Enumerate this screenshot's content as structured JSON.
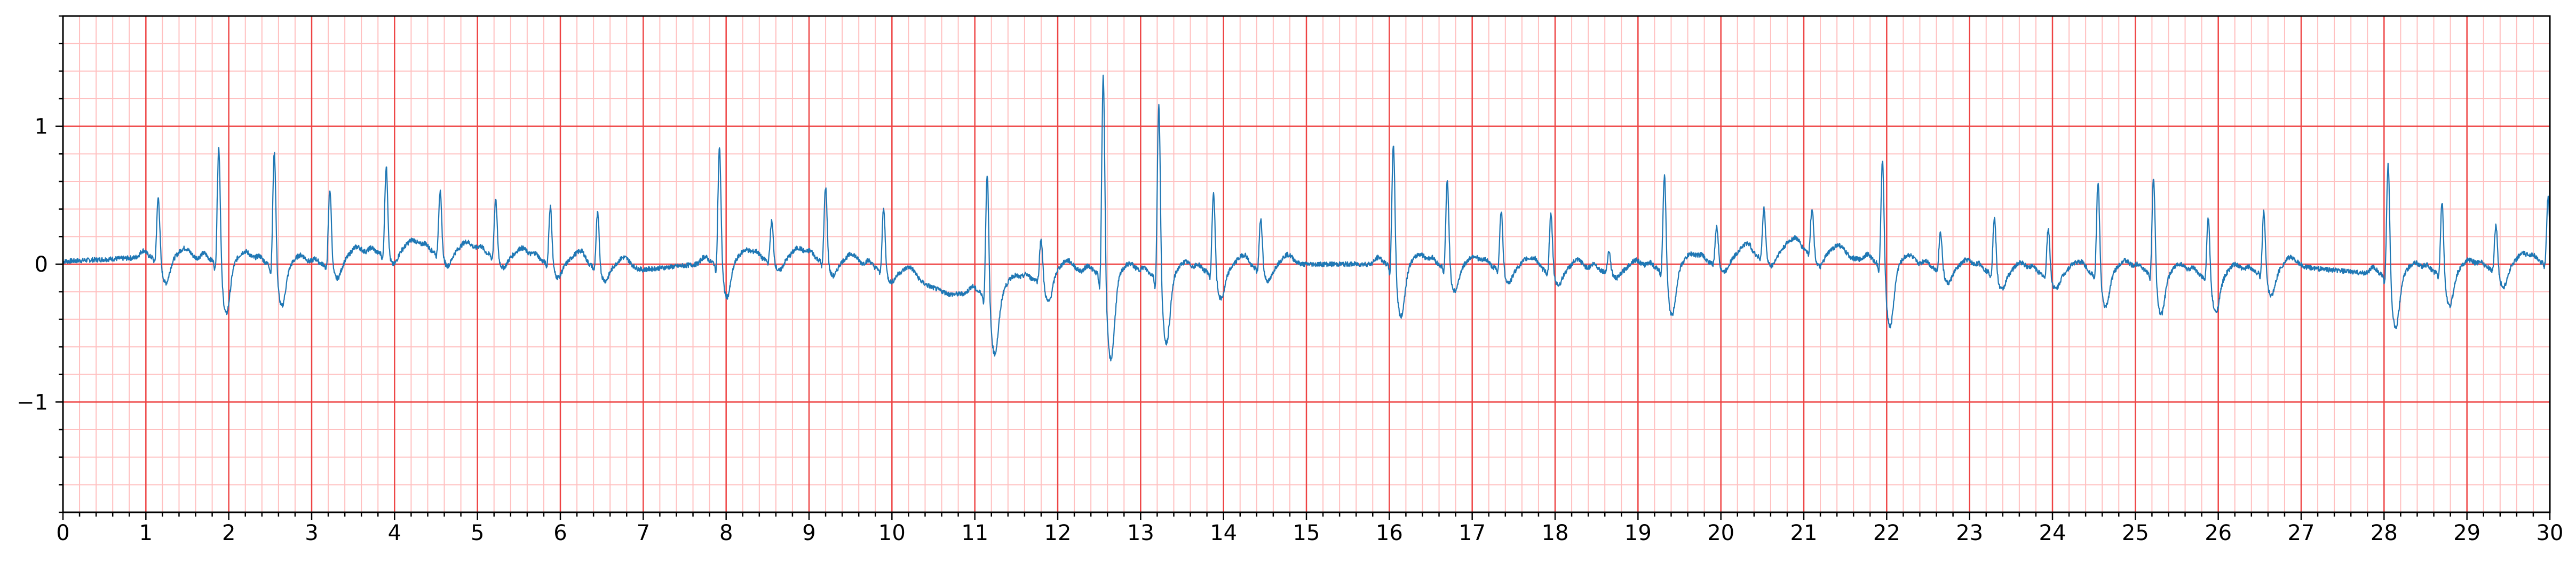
{
  "chart_data": {
    "type": "line",
    "title": "",
    "xlabel": "",
    "ylabel": "",
    "xlim": [
      0,
      30
    ],
    "ylim": [
      -1.8,
      1.8
    ],
    "x_ticks": [
      "0",
      "1",
      "2",
      "3",
      "4",
      "5",
      "6",
      "7",
      "8",
      "9",
      "10",
      "11",
      "12",
      "13",
      "14",
      "15",
      "16",
      "17",
      "18",
      "19",
      "20",
      "21",
      "22",
      "23",
      "24",
      "25",
      "26",
      "27",
      "28",
      "29",
      "30"
    ],
    "y_ticks": [
      "−1",
      "0",
      "1"
    ],
    "y_tick_values": [
      -1,
      0,
      1
    ],
    "grid": true,
    "grid_major": {
      "x_step": 1,
      "y_step": 1,
      "color": "#ee4444"
    },
    "grid_minor": {
      "x_step": 0.2,
      "y_step": 0.2,
      "color": "#ffc0c0"
    },
    "line_color": "#1f77b4",
    "series": [
      {
        "beats": [
          {
            "t": 1.15,
            "amp": 0.46,
            "neg": -0.18
          },
          {
            "t": 1.88,
            "amp": 0.87,
            "neg": -0.38
          },
          {
            "t": 2.55,
            "amp": 0.85,
            "neg": -0.3
          },
          {
            "t": 3.22,
            "amp": 0.55,
            "neg": -0.12
          },
          {
            "t": 3.9,
            "amp": 0.63,
            "neg": -0.1
          },
          {
            "t": 4.55,
            "amp": 0.45,
            "neg": -0.1
          },
          {
            "t": 5.22,
            "amp": 0.41,
            "neg": -0.08
          },
          {
            "t": 5.88,
            "amp": 0.42,
            "neg": -0.1
          },
          {
            "t": 6.45,
            "amp": 0.4,
            "neg": -0.1
          },
          {
            "t": 7.92,
            "amp": 0.86,
            "neg": -0.26
          },
          {
            "t": 8.55,
            "amp": 0.29,
            "neg": -0.08
          },
          {
            "t": 9.2,
            "amp": 0.55,
            "neg": -0.1
          },
          {
            "t": 9.9,
            "amp": 0.45,
            "neg": -0.08
          },
          {
            "t": 11.15,
            "amp": 0.92,
            "neg": -0.45
          },
          {
            "t": 11.8,
            "amp": 0.3,
            "neg": -0.2
          },
          {
            "t": 12.55,
            "amp": 1.51,
            "neg": -0.62
          },
          {
            "t": 13.22,
            "amp": 1.29,
            "neg": -0.5
          },
          {
            "t": 13.88,
            "amp": 0.6,
            "neg": -0.2
          },
          {
            "t": 14.45,
            "amp": 0.37,
            "neg": -0.1
          },
          {
            "t": 16.05,
            "amp": 0.92,
            "neg": -0.38
          },
          {
            "t": 16.7,
            "amp": 0.64,
            "neg": -0.18
          },
          {
            "t": 17.35,
            "amp": 0.43,
            "neg": -0.1
          },
          {
            "t": 17.95,
            "amp": 0.42,
            "neg": -0.1
          },
          {
            "t": 18.65,
            "amp": 0.15,
            "neg": -0.05
          },
          {
            "t": 19.32,
            "amp": 0.71,
            "neg": -0.35
          },
          {
            "t": 19.95,
            "amp": 0.27,
            "neg": -0.08
          },
          {
            "t": 20.52,
            "amp": 0.35,
            "neg": -0.08
          },
          {
            "t": 21.1,
            "amp": 0.33,
            "neg": -0.1
          },
          {
            "t": 21.95,
            "amp": 0.8,
            "neg": -0.45
          },
          {
            "t": 22.65,
            "amp": 0.28,
            "neg": -0.1
          },
          {
            "t": 23.3,
            "amp": 0.41,
            "neg": -0.12
          },
          {
            "t": 23.95,
            "amp": 0.35,
            "neg": -0.1
          },
          {
            "t": 24.55,
            "amp": 0.69,
            "neg": -0.25
          },
          {
            "t": 25.22,
            "amp": 0.73,
            "neg": -0.3
          },
          {
            "t": 25.88,
            "amp": 0.46,
            "neg": -0.25
          },
          {
            "t": 26.55,
            "amp": 0.46,
            "neg": -0.18
          },
          {
            "t": 28.05,
            "amp": 0.85,
            "neg": -0.38
          },
          {
            "t": 28.7,
            "amp": 0.54,
            "neg": -0.25
          },
          {
            "t": 29.35,
            "amp": 0.33,
            "neg": -0.15
          },
          {
            "t": 29.98,
            "amp": 0.48,
            "neg": -0.1
          }
        ],
        "baseline": [
          {
            "x": 0,
            "y": 0.02
          },
          {
            "x": 1,
            "y": 0.05
          },
          {
            "x": 2,
            "y": 0.02
          },
          {
            "x": 3,
            "y": -0.02
          },
          {
            "x": 4,
            "y": 0.1
          },
          {
            "x": 5,
            "y": 0.08
          },
          {
            "x": 6,
            "y": 0.0
          },
          {
            "x": 7,
            "y": -0.04
          },
          {
            "x": 8,
            "y": 0.02
          },
          {
            "x": 9,
            "y": 0.04
          },
          {
            "x": 10,
            "y": -0.05
          },
          {
            "x": 10.7,
            "y": -0.22
          },
          {
            "x": 11.3,
            "y": -0.2
          },
          {
            "x": 12,
            "y": -0.05
          },
          {
            "x": 13,
            "y": -0.08
          },
          {
            "x": 14,
            "y": -0.05
          },
          {
            "x": 15,
            "y": 0.0
          },
          {
            "x": 16,
            "y": 0.0
          },
          {
            "x": 17,
            "y": -0.02
          },
          {
            "x": 18,
            "y": -0.05
          },
          {
            "x": 19,
            "y": -0.05
          },
          {
            "x": 20,
            "y": 0.02
          },
          {
            "x": 21,
            "y": 0.1
          },
          {
            "x": 22,
            "y": 0.0
          },
          {
            "x": 23,
            "y": -0.05
          },
          {
            "x": 24,
            "y": -0.08
          },
          {
            "x": 25,
            "y": -0.05
          },
          {
            "x": 26,
            "y": -0.1
          },
          {
            "x": 27,
            "y": -0.02
          },
          {
            "x": 28,
            "y": -0.08
          },
          {
            "x": 29,
            "y": -0.05
          },
          {
            "x": 30,
            "y": 0.02
          }
        ]
      }
    ]
  }
}
